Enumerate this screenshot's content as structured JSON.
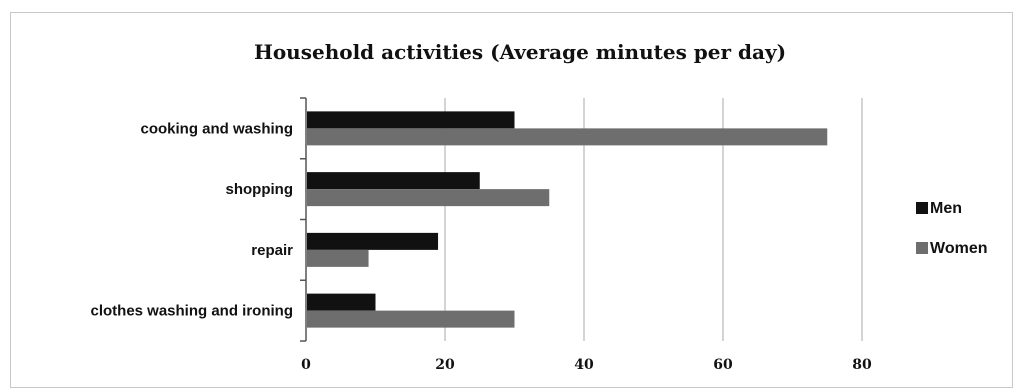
{
  "chart_data": {
    "type": "bar",
    "orientation": "horizontal",
    "title": "Household activities (Average minutes per day)",
    "xlabel": "",
    "ylabel": "",
    "categories": [
      "cooking and washing",
      "shopping",
      "repair",
      "clothes washing and ironing"
    ],
    "series": [
      {
        "name": "Men",
        "values": [
          30,
          25,
          19,
          10
        ],
        "color": "#111111"
      },
      {
        "name": "Women",
        "values": [
          75,
          35,
          9,
          30
        ],
        "color": "#6e6e6e"
      }
    ],
    "xlim": [
      0,
      80
    ],
    "xticks": [
      "0",
      "20",
      "40",
      "60",
      "80"
    ],
    "grid": true,
    "legend_position": "right"
  }
}
